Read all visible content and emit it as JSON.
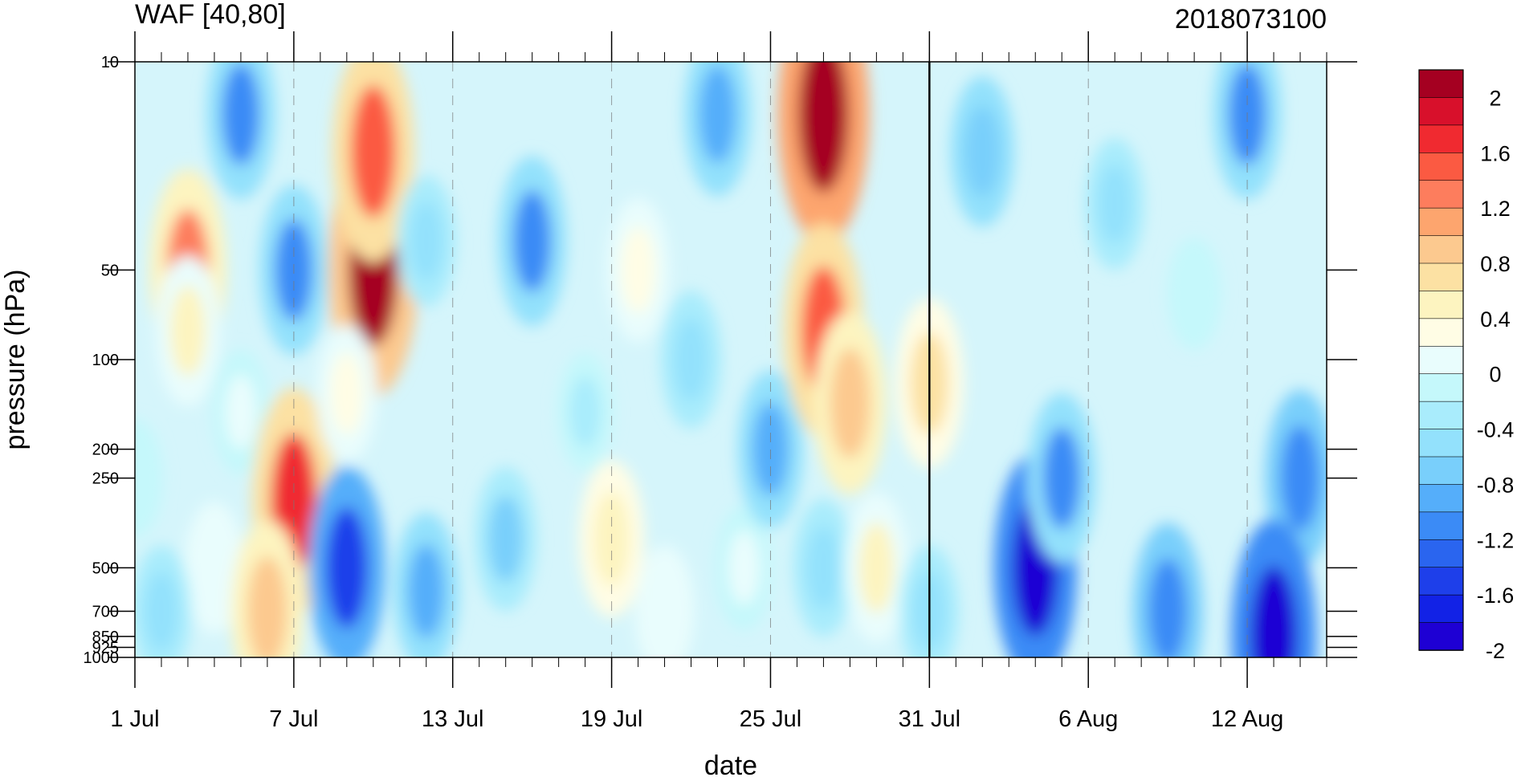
{
  "chart_data": {
    "type": "heatmap",
    "title_left": "WAF [40,80]",
    "title_right": "2018073100",
    "xlabel": "date",
    "ylabel": "pressure (hPa)",
    "x_range": [
      "2018-07-01",
      "2018-08-15"
    ],
    "x_ticks": [
      {
        "date": "2018-07-01",
        "label": "1 Jul"
      },
      {
        "date": "2018-07-07",
        "label": "7 Jul"
      },
      {
        "date": "2018-07-13",
        "label": "13 Jul"
      },
      {
        "date": "2018-07-19",
        "label": "19 Jul"
      },
      {
        "date": "2018-07-25",
        "label": "25 Jul"
      },
      {
        "date": "2018-07-31",
        "label": "31 Jul"
      },
      {
        "date": "2018-08-06",
        "label": "6 Aug"
      },
      {
        "date": "2018-08-12",
        "label": "12 Aug"
      }
    ],
    "y_scale": "log",
    "y_range": [
      1000,
      10
    ],
    "y_ticks": [
      "10",
      "50",
      "100",
      "200",
      "250",
      "500",
      "700",
      "850",
      "925",
      "1000"
    ],
    "vertical_marker_date": "2018-07-31",
    "dashed_gridlines": true,
    "legend": "colorbar-right",
    "colorbar": {
      "labels": [
        "2",
        "1.6",
        "1.2",
        "0.8",
        "0.4",
        "0",
        "-0.4",
        "-0.8",
        "-1.2",
        "-1.6",
        "-2"
      ],
      "colors": [
        "#a50021",
        "#d8102b",
        "#f02a30",
        "#fb5a42",
        "#fd7d5d",
        "#fda56e",
        "#fcc98f",
        "#fce1a3",
        "#fdf4c0",
        "#fffde5",
        "#e9fdfd",
        "#c5f8fb",
        "#a9ecfc",
        "#93e1fc",
        "#79cffb",
        "#55aefa",
        "#3b8bf6",
        "#2a65ef",
        "#1e3fea",
        "#1222e6",
        "#1e00d4"
      ]
    },
    "blobs": [
      {
        "date": "2018-07-03",
        "p": 50,
        "value": 1.4
      },
      {
        "date": "2018-07-03",
        "p": 80,
        "value": 0.6
      },
      {
        "date": "2018-07-01",
        "p": 250,
        "value": 0.1
      },
      {
        "date": "2018-07-04",
        "p": 500,
        "value": 0.3
      },
      {
        "date": "2018-07-02",
        "p": 700,
        "value": -0.3
      },
      {
        "date": "2018-07-05",
        "p": 15,
        "value": -0.9
      },
      {
        "date": "2018-07-05",
        "p": 150,
        "value": 0.2
      },
      {
        "date": "2018-07-07",
        "p": 50,
        "value": -0.9
      },
      {
        "date": "2018-07-07",
        "p": 300,
        "value": 1.8
      },
      {
        "date": "2018-07-06",
        "p": 700,
        "value": 1.1
      },
      {
        "date": "2018-07-10",
        "p": 50,
        "value": 2.2
      },
      {
        "date": "2018-07-10",
        "p": 20,
        "value": 1.7
      },
      {
        "date": "2018-07-09",
        "p": 130,
        "value": 0.4
      },
      {
        "date": "2018-07-09",
        "p": 500,
        "value": -1.4
      },
      {
        "date": "2018-07-12",
        "p": 600,
        "value": -0.7
      },
      {
        "date": "2018-07-12",
        "p": 40,
        "value": -0.3
      },
      {
        "date": "2018-07-16",
        "p": 40,
        "value": -0.9
      },
      {
        "date": "2018-07-15",
        "p": 400,
        "value": -0.5
      },
      {
        "date": "2018-07-18",
        "p": 150,
        "value": -0.1
      },
      {
        "date": "2018-07-20",
        "p": 50,
        "value": 0.5
      },
      {
        "date": "2018-07-19",
        "p": 400,
        "value": 0.7
      },
      {
        "date": "2018-07-21",
        "p": 700,
        "value": 0.3
      },
      {
        "date": "2018-07-22",
        "p": 100,
        "value": -0.4
      },
      {
        "date": "2018-07-23",
        "p": 15,
        "value": -0.8
      },
      {
        "date": "2018-07-24",
        "p": 500,
        "value": 0.2
      },
      {
        "date": "2018-07-25",
        "p": 200,
        "value": -0.7
      },
      {
        "date": "2018-07-27",
        "p": 15,
        "value": 2.3
      },
      {
        "date": "2018-07-27",
        "p": 80,
        "value": 1.6
      },
      {
        "date": "2018-07-28",
        "p": 140,
        "value": 1.1
      },
      {
        "date": "2018-07-27",
        "p": 500,
        "value": -0.4
      },
      {
        "date": "2018-07-29",
        "p": 500,
        "value": 0.6
      },
      {
        "date": "2018-07-31",
        "p": 120,
        "value": 0.9
      },
      {
        "date": "2018-07-31",
        "p": 700,
        "value": -0.3
      },
      {
        "date": "2018-08-02",
        "p": 20,
        "value": -0.6
      },
      {
        "date": "2018-08-04",
        "p": 500,
        "value": -1.8
      },
      {
        "date": "2018-08-05",
        "p": 250,
        "value": -0.9
      },
      {
        "date": "2018-08-07",
        "p": 30,
        "value": -0.3
      },
      {
        "date": "2018-08-10",
        "p": 60,
        "value": 0.0
      },
      {
        "date": "2018-08-12",
        "p": 15,
        "value": -0.9
      },
      {
        "date": "2018-08-14",
        "p": 250,
        "value": -1.0
      },
      {
        "date": "2018-08-13",
        "p": 850,
        "value": -1.9
      },
      {
        "date": "2018-08-09",
        "p": 700,
        "value": -1.0
      }
    ]
  }
}
